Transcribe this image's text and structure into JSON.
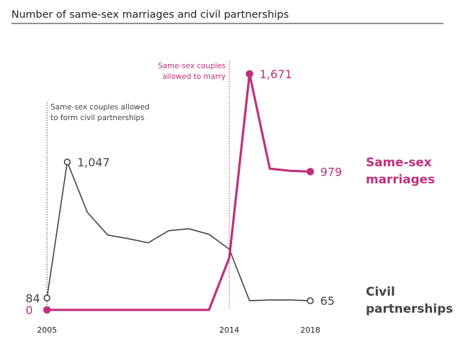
{
  "chart_data": {
    "type": "line",
    "title": "Number of same-sex marriages and civil partnerships",
    "xlabel": "",
    "ylabel": "",
    "x": [
      2005,
      2006,
      2007,
      2008,
      2009,
      2010,
      2011,
      2012,
      2013,
      2014,
      2015,
      2016,
      2017,
      2018
    ],
    "x_ticks": [
      "2005",
      "2014",
      "2018"
    ],
    "ylim": [
      0,
      1750
    ],
    "grid": false,
    "legend": "direct-labels-right",
    "series": [
      {
        "name": "Civil partnerships",
        "name_lines": [
          "Civil",
          "partnerships"
        ],
        "color": "#444444",
        "values": [
          84,
          1047,
          690,
          530,
          505,
          475,
          560,
          575,
          535,
          430,
          65,
          70,
          70,
          65
        ],
        "labels": [
          {
            "index": 0,
            "text": "84"
          },
          {
            "index": 1,
            "text": "1,047"
          },
          {
            "index": 13,
            "text": "65"
          }
        ]
      },
      {
        "name": "Same-sex marriages",
        "name_lines": [
          "Same-sex",
          "marriages"
        ],
        "color": "#c0307a",
        "values": [
          0,
          0,
          0,
          0,
          0,
          0,
          0,
          0,
          0,
          370,
          1671,
          1000,
          985,
          979
        ],
        "labels": [
          {
            "index": 0,
            "text": "0"
          },
          {
            "index": 10,
            "text": "1,671"
          },
          {
            "index": 13,
            "text": "979"
          }
        ]
      }
    ],
    "annotations": [
      {
        "x": 2005,
        "lines": [
          "Same-sex couples allowed",
          "to form civil partnerships"
        ],
        "color": "#444444"
      },
      {
        "x": 2014,
        "lines": [
          "Same-sex couples",
          "allowed to marry"
        ],
        "color": "#c0307a"
      }
    ]
  }
}
